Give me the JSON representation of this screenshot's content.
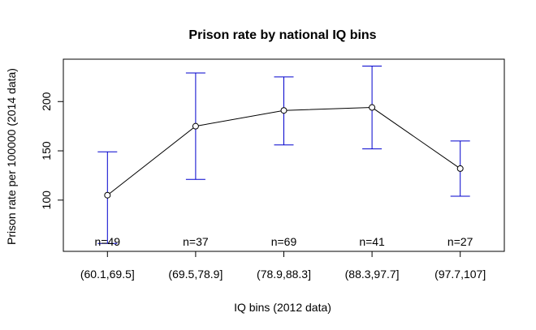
{
  "chart_data": {
    "type": "line",
    "title": "Prison rate by national IQ bins",
    "xlabel": "IQ bins (2012 data)",
    "ylabel": "Prison rate per 100000 (2014 data)",
    "categories": [
      "(60.1,69.5]",
      "(69.5,78.9]",
      "(78.9,88.3]",
      "(88.3,97.7]",
      "(97.7,107]"
    ],
    "values": [
      105,
      175,
      191,
      194,
      132
    ],
    "error_lower": [
      56,
      121,
      156,
      152,
      104
    ],
    "error_upper": [
      149,
      229,
      225,
      236,
      160
    ],
    "counts": [
      "n=49",
      "n=37",
      "n=69",
      "n=41",
      "n=27"
    ],
    "y_ticks": [
      100,
      150,
      200
    ],
    "ylim": [
      48,
      243
    ],
    "colors": {
      "line": "#000000",
      "error_bar": "#0000cd",
      "box": "#000000"
    }
  }
}
